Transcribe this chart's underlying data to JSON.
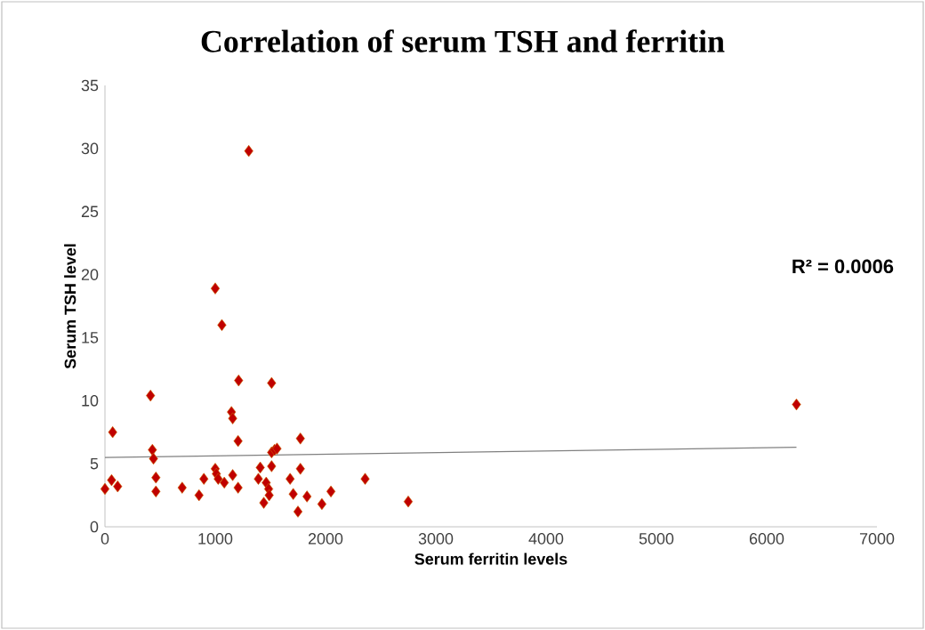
{
  "chart_data": {
    "type": "scatter",
    "title": "Correlation  of serum TSH and ferritin",
    "xlabel": "Serum ferritin levels",
    "ylabel": "Serum TSH level",
    "annotations": [
      "R² = 0.0006"
    ],
    "xlim": [
      0,
      7000
    ],
    "xticks": [
      0,
      1000,
      2000,
      3000,
      4000,
      5000,
      6000,
      7000
    ],
    "ylim": [
      0,
      35
    ],
    "yticks": [
      0,
      5,
      10,
      15,
      20,
      25,
      30,
      35
    ],
    "series": [
      {
        "color": "#c00000",
        "marker": "diamond",
        "x": [
          0,
          60,
          115,
          70,
          413,
          430,
          440,
          462,
          462,
          700,
          853,
          897,
          1000,
          1000,
          1010,
          1027,
          1060,
          1082,
          1147,
          1158,
          1158,
          1212,
          1207,
          1207,
          1304,
          1391,
          1408,
          1440,
          1462,
          1484,
          1489,
          1511,
          1511,
          1511,
          1538,
          1560,
          1679,
          1707,
          1750,
          1772,
          1772,
          1832,
          1967,
          2049,
          2359,
          2750,
          6270
        ],
        "values": [
          3.0,
          3.7,
          3.2,
          7.5,
          10.4,
          6.1,
          5.4,
          3.9,
          2.8,
          3.1,
          2.5,
          3.8,
          18.9,
          4.6,
          4.2,
          3.8,
          16.0,
          3.5,
          9.1,
          8.6,
          4.1,
          11.6,
          6.8,
          3.1,
          29.8,
          3.8,
          4.7,
          1.9,
          3.5,
          3.0,
          2.5,
          11.4,
          4.8,
          5.9,
          6.1,
          6.2,
          3.8,
          2.6,
          1.2,
          7.0,
          4.6,
          2.4,
          1.8,
          2.8,
          3.8,
          2.0,
          9.7
        ]
      },
      {
        "type": "line",
        "color": "#808080",
        "x": [
          0,
          6270
        ],
        "values": [
          5.5,
          6.3
        ]
      }
    ]
  }
}
